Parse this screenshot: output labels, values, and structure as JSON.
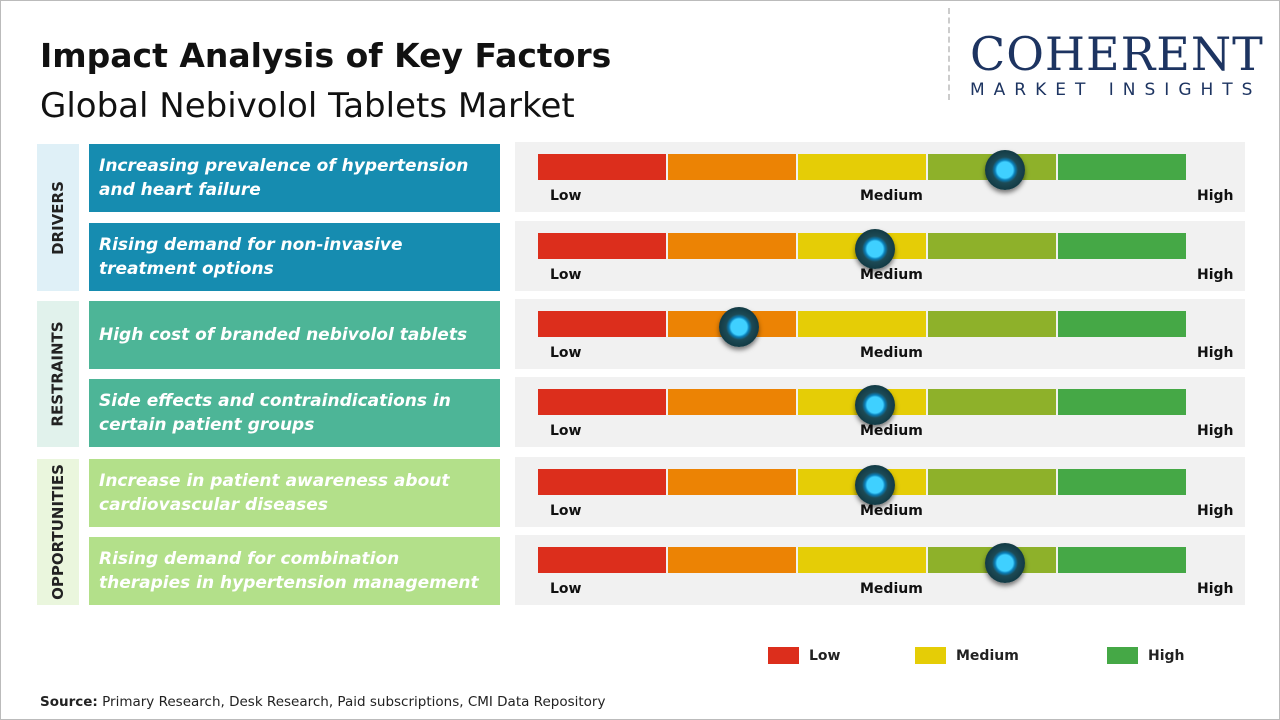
{
  "title": "Impact Analysis of Key Factors",
  "subtitle": "Global Nebivolol Tablets Market",
  "logo": {
    "main": "COHERENT",
    "sub": "MARKET INSIGHTS"
  },
  "scale_labels": {
    "low": "Low",
    "medium": "Medium",
    "high": "High"
  },
  "segment_colors": [
    "#dc2e1c",
    "#ec8304",
    "#e5cd06",
    "#8eb12a",
    "#45a846"
  ],
  "chart_data": {
    "type": "gauge",
    "title": "Impact Analysis of Key Factors",
    "scale": [
      "Low",
      "Medium",
      "High"
    ],
    "range": [
      0,
      1
    ],
    "categories": [
      {
        "name": "DRIVERS",
        "label_bg": "#dff0f7",
        "item_color": "#168cb0",
        "factors": [
          {
            "text": "Increasing prevalence of hypertension and heart failure",
            "impact": 0.72
          },
          {
            "text": "Rising demand for non-invasive treatment options",
            "impact": 0.52
          }
        ]
      },
      {
        "name": "RESTRAINTS",
        "label_bg": "#e1f2ec",
        "item_color": "#4db597",
        "factors": [
          {
            "text": "High cost of branded nebivolol tablets",
            "impact": 0.31
          },
          {
            "text": "Side effects and contraindications in certain patient groups",
            "impact": 0.52
          }
        ]
      },
      {
        "name": "OPPORTUNITIES",
        "label_bg": "#eaf6dd",
        "item_color": "#b3e08a",
        "factors": [
          {
            "text": "Increase in patient awareness about cardiovascular diseases",
            "impact": 0.52
          },
          {
            "text": "Rising demand for combination therapies in hypertension management",
            "impact": 0.72
          }
        ]
      }
    ],
    "legend": [
      {
        "label": "Low",
        "color": "#dc2e1c"
      },
      {
        "label": "Medium",
        "color": "#e5cd06"
      },
      {
        "label": "High",
        "color": "#45a846"
      }
    ]
  },
  "source": {
    "label": "Source:",
    "text": " Primary Research, Desk Research, Paid subscriptions, CMI Data Repository"
  }
}
